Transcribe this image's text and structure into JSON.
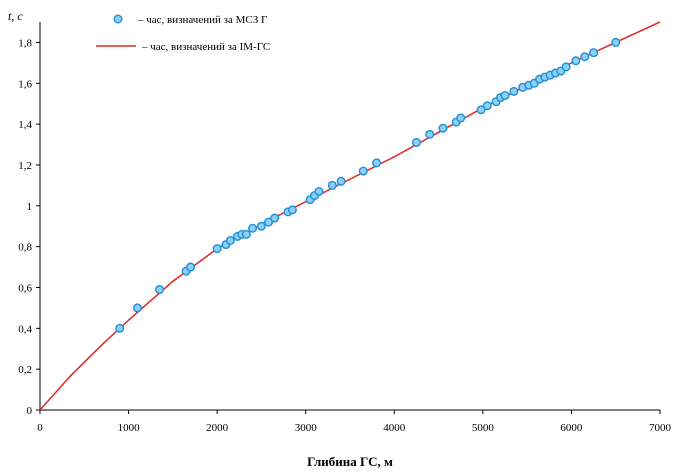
{
  "chart_data": {
    "type": "scatter",
    "xlabel": "Глибина ГС, м",
    "ylabel": "t, с",
    "xlim": [
      0,
      7000
    ],
    "ylim": [
      0,
      1.9
    ],
    "x_ticks": [
      "0",
      "1000",
      "2000",
      "3000",
      "4000",
      "5000",
      "6000",
      "7000"
    ],
    "y_ticks": [
      "0",
      "0,2",
      "0,4",
      "0,6",
      "0,8",
      "1",
      "1,2",
      "1,4",
      "1,6",
      "1,8"
    ],
    "grid": false,
    "legend_position": "top-left",
    "series": [
      {
        "name": "– час, визначений за МСЗ Г",
        "kind": "scatter",
        "color": "#1e8fd8",
        "x": [
          900,
          1100,
          1350,
          1650,
          1700,
          2000,
          2100,
          2150,
          2230,
          2280,
          2330,
          2400,
          2500,
          2580,
          2650,
          2800,
          2850,
          3050,
          3100,
          3150,
          3300,
          3400,
          3650,
          3800,
          4250,
          4400,
          4550,
          4700,
          4750,
          4980,
          5050,
          5150,
          5200,
          5250,
          5350,
          5450,
          5520,
          5580,
          5640,
          5700,
          5760,
          5820,
          5880,
          5940,
          6050,
          6150,
          6250,
          6500
        ],
        "y": [
          0.4,
          0.5,
          0.59,
          0.68,
          0.7,
          0.79,
          0.81,
          0.83,
          0.85,
          0.86,
          0.86,
          0.89,
          0.9,
          0.92,
          0.94,
          0.97,
          0.98,
          1.03,
          1.05,
          1.07,
          1.1,
          1.12,
          1.17,
          1.21,
          1.31,
          1.35,
          1.38,
          1.41,
          1.43,
          1.47,
          1.49,
          1.51,
          1.53,
          1.54,
          1.56,
          1.58,
          1.59,
          1.6,
          1.62,
          1.63,
          1.64,
          1.65,
          1.66,
          1.68,
          1.71,
          1.73,
          1.75,
          1.8
        ]
      },
      {
        "name": "– час, визначений за ІМ-ГС",
        "kind": "line",
        "color": "#e03030",
        "x": [
          0,
          350,
          700,
          1000,
          1500,
          2000,
          2500,
          3000,
          3500,
          4000,
          4500,
          5000,
          5500,
          6000,
          6500,
          7000
        ],
        "y": [
          0.0,
          0.17,
          0.32,
          0.44,
          0.63,
          0.79,
          0.91,
          1.02,
          1.13,
          1.24,
          1.36,
          1.48,
          1.59,
          1.7,
          1.8,
          1.9
        ]
      }
    ]
  }
}
